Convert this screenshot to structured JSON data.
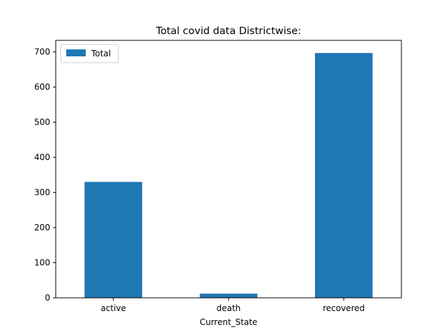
{
  "chart_data": {
    "type": "bar",
    "title": "Total covid data Districtwise:",
    "xlabel": "Current_State",
    "ylabel": "",
    "categories": [
      "active",
      "death",
      "recovered"
    ],
    "series": [
      {
        "name": "Total",
        "values": [
          330,
          12,
          697
        ]
      }
    ],
    "ylim": [
      0,
      733
    ],
    "yticks": [
      "0",
      "100",
      "200",
      "300",
      "400",
      "500",
      "600",
      "700"
    ],
    "grid": false,
    "legend": "top-left",
    "colors": {
      "bar": "#1f77b4",
      "axis": "#000000"
    }
  }
}
